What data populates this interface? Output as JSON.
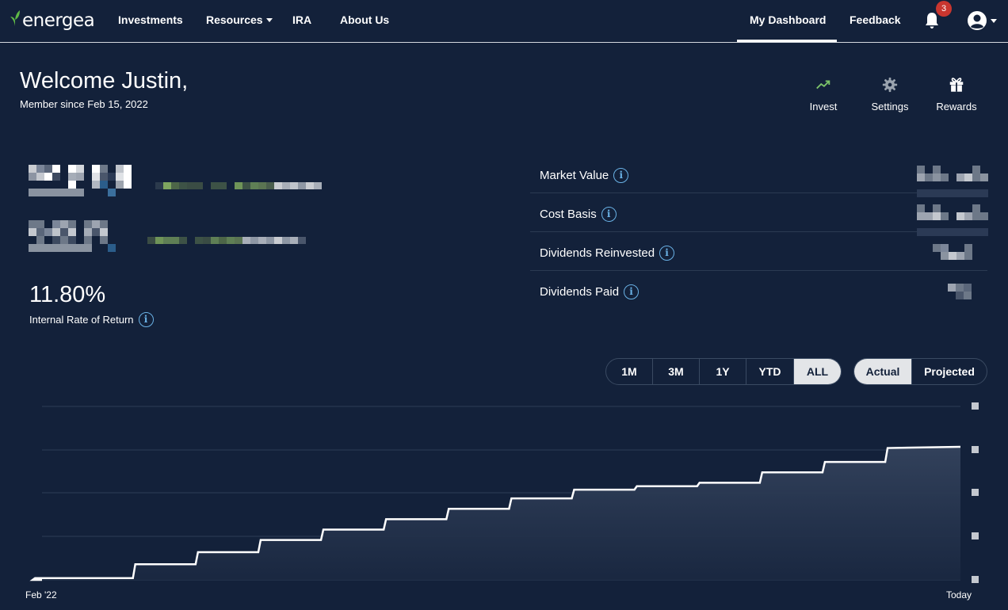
{
  "nav": {
    "brand": "energea",
    "links": [
      "Investments",
      "Resources",
      "IRA",
      "About Us"
    ],
    "dashboard": "My Dashboard",
    "feedback": "Feedback",
    "notification_count": "3",
    "colors": {
      "background": "#13213a",
      "badge": "#c9362f",
      "leaf": "#5fb946"
    }
  },
  "header": {
    "welcome": "Welcome Justin,",
    "member_since": "Member since Feb 15, 2022",
    "actions": [
      {
        "label": "Invest",
        "icon": "trending-up-icon"
      },
      {
        "label": "Settings",
        "icon": "gear-icon"
      },
      {
        "label": "Rewards",
        "icon": "gift-icon"
      }
    ]
  },
  "summary": {
    "irr_value": "11.80%",
    "irr_label": "Internal Rate of Return"
  },
  "stats": [
    {
      "label": "Market Value"
    },
    {
      "label": "Cost Basis"
    },
    {
      "label": "Dividends Reinvested"
    },
    {
      "label": "Dividends Paid"
    }
  ],
  "range_toggle": {
    "options": [
      "1M",
      "3M",
      "1Y",
      "YTD",
      "ALL"
    ],
    "selected": "ALL"
  },
  "mode_toggle": {
    "options": [
      "Actual",
      "Projected"
    ],
    "selected": "Actual"
  },
  "chart_data": {
    "type": "area",
    "x_start_label": "Feb '22",
    "x_end_label": "Today",
    "step_levels": [
      0.0,
      0.01,
      0.09,
      0.16,
      0.23,
      0.29,
      0.35,
      0.41,
      0.47,
      0.52,
      0.54,
      0.56,
      0.62,
      0.68,
      0.76
    ],
    "grid": true,
    "colors": {
      "line": "#ffffff",
      "fill": "#2b3a55"
    }
  }
}
